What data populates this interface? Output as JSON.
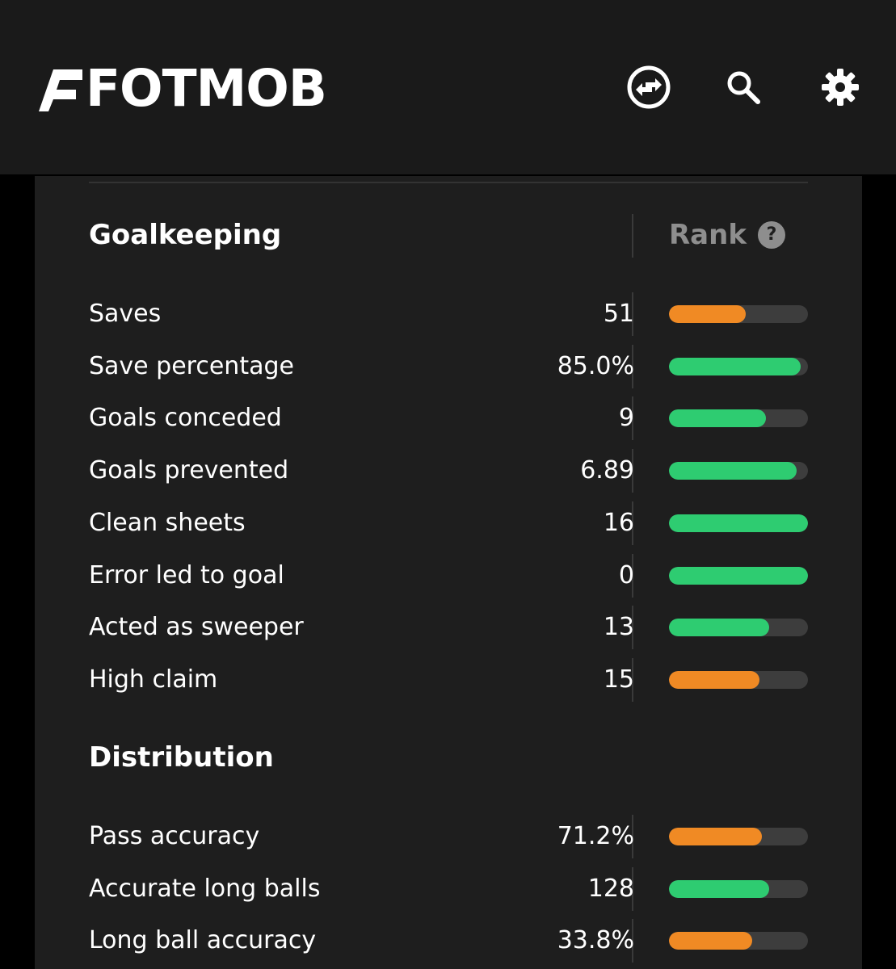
{
  "header": {
    "logo_text": "FOTMOB",
    "background": "#1a1a1a",
    "icons": [
      "transfer-icon",
      "search-icon",
      "gear-icon"
    ]
  },
  "colors": {
    "good": "#2ecc71",
    "average": "#f08a24",
    "track": "#3d3d3d"
  },
  "goalkeeping": {
    "title": "Goalkeeping",
    "rank_label": "Rank",
    "help_symbol": "?",
    "rows": [
      {
        "label": "Saves",
        "value": "51",
        "rank_fill": 0.55,
        "tier": "average"
      },
      {
        "label": "Save percentage",
        "value": "85.0%",
        "rank_fill": 0.95,
        "tier": "good"
      },
      {
        "label": "Goals conceded",
        "value": "9",
        "rank_fill": 0.7,
        "tier": "good"
      },
      {
        "label": "Goals prevented",
        "value": "6.89",
        "rank_fill": 0.92,
        "tier": "good"
      },
      {
        "label": "Clean sheets",
        "value": "16",
        "rank_fill": 1.0,
        "tier": "good"
      },
      {
        "label": "Error led to goal",
        "value": "0",
        "rank_fill": 1.0,
        "tier": "good"
      },
      {
        "label": "Acted as sweeper",
        "value": "13",
        "rank_fill": 0.72,
        "tier": "good"
      },
      {
        "label": "High claim",
        "value": "15",
        "rank_fill": 0.65,
        "tier": "average"
      }
    ]
  },
  "distribution": {
    "title": "Distribution",
    "rows": [
      {
        "label": "Pass accuracy",
        "value": "71.2%",
        "rank_fill": 0.67,
        "tier": "average"
      },
      {
        "label": "Accurate long balls",
        "value": "128",
        "rank_fill": 0.72,
        "tier": "good"
      },
      {
        "label": "Long ball accuracy",
        "value": "33.8%",
        "rank_fill": 0.6,
        "tier": "average"
      }
    ]
  }
}
